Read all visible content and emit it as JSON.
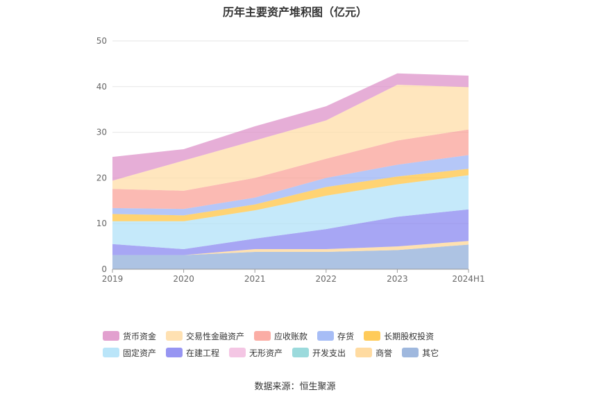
{
  "title": "历年主要资产堆积图（亿元）",
  "source": "数据来源：恒生聚源",
  "chart_data": {
    "type": "area",
    "stacked": true,
    "title": "历年主要资产堆积图（亿元）",
    "categories": [
      "2019",
      "2020",
      "2021",
      "2022",
      "2023",
      "2024H1"
    ],
    "ylim": [
      0,
      50
    ],
    "yticks": [
      0,
      10,
      20,
      30,
      40,
      50
    ],
    "grid": true,
    "legend_position": "bottom",
    "series": [
      {
        "name": "其它",
        "color": "#8eacd8",
        "values": [
          3.1,
          3.1,
          3.8,
          3.8,
          4.2,
          5.4
        ]
      },
      {
        "name": "商誉",
        "color": "#ffd591",
        "values": [
          0.0,
          0.0,
          0.6,
          0.6,
          0.8,
          0.8
        ]
      },
      {
        "name": "开发支出",
        "color": "#8ad4d6",
        "values": [
          0.0,
          0.0,
          0.0,
          0.0,
          0.0,
          0.0
        ]
      },
      {
        "name": "无形资产",
        "color": "#f2bcdf",
        "values": [
          0.0,
          0.0,
          0.0,
          0.0,
          0.0,
          0.0
        ]
      },
      {
        "name": "在建工程",
        "color": "#8583f0",
        "values": [
          2.4,
          1.3,
          2.3,
          4.4,
          6.5,
          6.9
        ]
      },
      {
        "name": "固定资产",
        "color": "#aee1f8",
        "values": [
          5.0,
          6.1,
          6.2,
          7.3,
          7.1,
          7.5
        ]
      },
      {
        "name": "长期股权投资",
        "color": "#ffc23d",
        "values": [
          1.6,
          1.3,
          1.3,
          1.9,
          1.7,
          1.4
        ]
      },
      {
        "name": "存货",
        "color": "#98b2f5",
        "values": [
          1.3,
          1.4,
          1.5,
          2.0,
          2.6,
          3.0
        ]
      },
      {
        "name": "应收账款",
        "color": "#fa9f95",
        "values": [
          4.2,
          4.0,
          4.3,
          4.2,
          5.3,
          5.6
        ]
      },
      {
        "name": "交易性金融资产",
        "color": "#ffdca5",
        "values": [
          1.8,
          6.6,
          8.2,
          8.4,
          12.2,
          9.3
        ]
      },
      {
        "name": "货币资金",
        "color": "#dd8fc7",
        "values": [
          5.2,
          2.5,
          3.1,
          3.1,
          2.5,
          2.5
        ]
      }
    ]
  },
  "legend_order": [
    "货币资金",
    "交易性金融资产",
    "应收账款",
    "存货",
    "长期股权投资",
    "固定资产",
    "在建工程",
    "无形资产",
    "开发支出",
    "商誉",
    "其它"
  ]
}
